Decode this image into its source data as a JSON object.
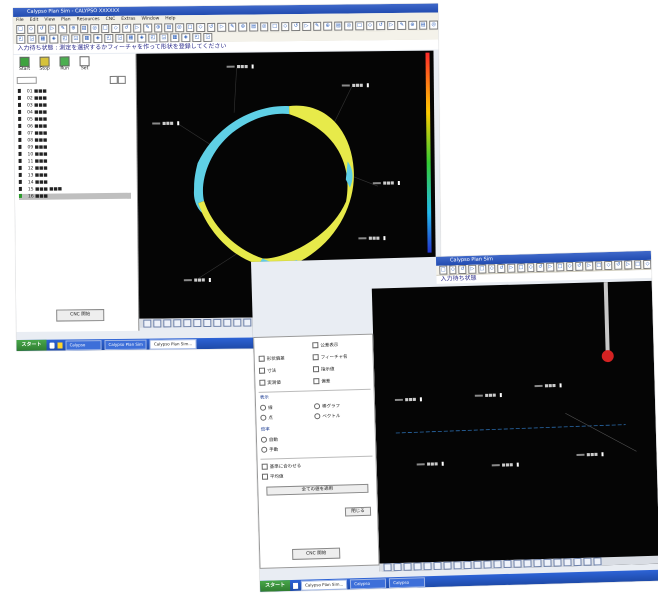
{
  "shot1": {
    "title": "Calypso Plan Sim - CALYPSO XXXXXX",
    "menu": [
      "File",
      "Edit",
      "View",
      "Plan",
      "Resources",
      "CNC",
      "Extras",
      "Window",
      "Help"
    ],
    "info_text": "入力待ち状態 : 測定を選択するかフィーチャを作って形状を登録してください",
    "big_buttons": [
      "Start",
      "Stop",
      "Run",
      "Set"
    ],
    "tree_items": [
      "01 ■■■",
      "02 ■■■",
      "03 ■■■",
      "04 ■■■",
      "05 ■■■",
      "06 ■■■",
      "07 ■■■",
      "08 ■■■",
      "09 ■■■",
      "10 ■■■",
      "11 ■■■",
      "12 ■■■",
      "13 ■■■",
      "14 ■■■",
      "15 ■■■ ■■■",
      "16 ■■■"
    ],
    "bottom_button": "CNC 開始",
    "taskbar": {
      "start": "スタート",
      "items": [
        "Calypso",
        "Calypso Plan Sim",
        "Calypso Plan Sim..."
      ]
    },
    "accent_colors": {
      "profile_yellow": "#e7ea4a",
      "profile_cyan": "#5fd0e6",
      "viewport": "#050505"
    },
    "shape": "roundness-profile"
  },
  "shot2": {
    "title": "Calypso Plan Sim",
    "info_text": "入力待ち状態",
    "dialog": {
      "options": [
        "公差表示",
        "形状偏差",
        "フィーチャ名",
        "寸法",
        "指示値",
        "実測値",
        "偏差"
      ],
      "group1": "表示",
      "radio1": [
        "線",
        "棒グラフ",
        "点",
        "ベクトル"
      ],
      "group2": "倍率",
      "radio2": [
        "自動",
        "手動"
      ],
      "extra": [
        "基準に合わせる",
        "平均値"
      ],
      "apply_button": "全ての値を適用",
      "close_button": "閉じる",
      "bottom_button": "CNC 開始"
    },
    "taskbar": {
      "start": "スタート",
      "items": [
        "Calypso Plan Sim...",
        "Calypso",
        "Calypso"
      ]
    },
    "accent_colors": {
      "stylus": "#c8c8c8",
      "ball": "#d42222"
    }
  }
}
